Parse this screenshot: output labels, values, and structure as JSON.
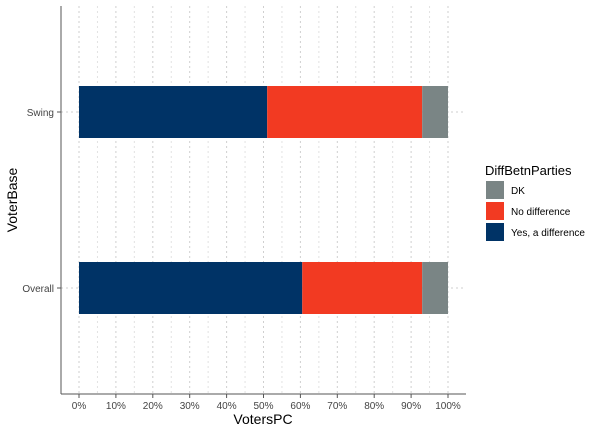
{
  "chart_data": {
    "type": "bar",
    "orientation": "horizontal",
    "stacked": true,
    "categories": [
      "Swing",
      "Overall"
    ],
    "series": [
      {
        "name": "Yes, a difference",
        "color": "#003366",
        "values": [
          51,
          60.5
        ]
      },
      {
        "name": "No difference",
        "color": "#f23a22",
        "values": [
          42,
          32.5
        ]
      },
      {
        "name": "DK",
        "color": "#7a8585",
        "values": [
          7,
          7
        ]
      }
    ],
    "xlabel": "VotersPC",
    "ylabel": "VoterBase",
    "xlim": [
      0,
      100
    ],
    "x_ticks": [
      "0%",
      "10%",
      "20%",
      "30%",
      "40%",
      "50%",
      "60%",
      "70%",
      "80%",
      "90%",
      "100%"
    ],
    "grid": "vertical dotted",
    "legend": {
      "title": "DiffBetnParties",
      "placement": "right",
      "entries": [
        {
          "label": "DK",
          "color": "#7a8585"
        },
        {
          "label": "No difference",
          "color": "#f23a22"
        },
        {
          "label": "Yes, a difference",
          "color": "#003366"
        }
      ]
    }
  }
}
